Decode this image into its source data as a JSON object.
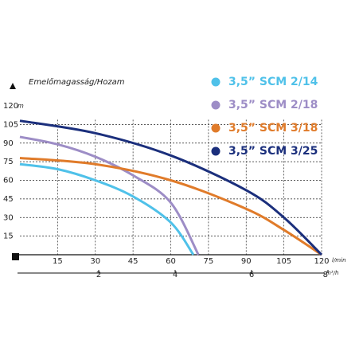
{
  "chart_data": {
    "type": "line",
    "title": "Emelőmagasság/Hozam",
    "y_unit": "m",
    "x_unit": "l/min",
    "x2_unit": "m³/h",
    "xlim": [
      0,
      120
    ],
    "xticks": [
      15,
      30,
      45,
      60,
      75,
      90,
      105,
      120
    ],
    "ylim": [
      0,
      120
    ],
    "yticks": [
      15,
      30,
      45,
      60,
      75,
      90,
      105,
      120
    ],
    "x2lim": [
      0,
      8
    ],
    "x2ticks": [
      2,
      4,
      6,
      8
    ],
    "grid": true,
    "series": [
      {
        "name": "3,5” SCM 2/14",
        "color": "#4fc1e9",
        "x": [
          0,
          15,
          30,
          45,
          60,
          69
        ],
        "values": [
          73,
          69,
          60,
          47,
          26,
          0
        ]
      },
      {
        "name": "3,5” SCM 2/18",
        "color": "#9d8dc6",
        "x": [
          0,
          15,
          30,
          45,
          60,
          71
        ],
        "values": [
          95,
          89,
          79,
          64,
          42,
          0
        ]
      },
      {
        "name": "3,5” SCM 3/18",
        "color": "#e07b2a",
        "x": [
          0,
          30,
          60,
          90,
          105,
          120
        ],
        "values": [
          78,
          73,
          60,
          37,
          20,
          0
        ]
      },
      {
        "name": "3,5” SCM 3/25",
        "color": "#1b2f7c",
        "x": [
          0,
          30,
          60,
          90,
          105,
          120
        ],
        "values": [
          108,
          98,
          80,
          52,
          30,
          0
        ]
      }
    ]
  }
}
